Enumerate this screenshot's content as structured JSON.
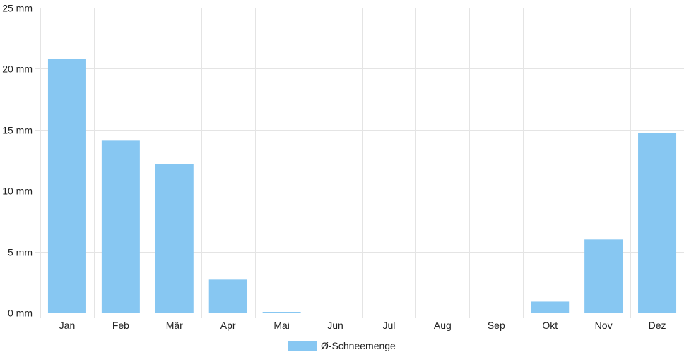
{
  "chart_data": {
    "type": "bar",
    "categories": [
      "Jan",
      "Feb",
      "Mär",
      "Apr",
      "Mai",
      "Jun",
      "Jul",
      "Aug",
      "Sep",
      "Okt",
      "Nov",
      "Dez"
    ],
    "series": [
      {
        "name": "Ø-Schneemenge",
        "values": [
          20.8,
          14.1,
          12.2,
          2.7,
          0.05,
          0,
          0,
          0,
          0,
          0.9,
          6.0,
          14.7
        ],
        "color": "#87c7f2"
      }
    ],
    "ylim": [
      0,
      25
    ],
    "yticks": [
      0,
      5,
      10,
      15,
      20,
      25
    ],
    "ytick_labels": [
      "0 mm",
      "5 mm",
      "10 mm",
      "15 mm",
      "20 mm",
      "25 mm"
    ],
    "grid": true,
    "legend_position": "bottom-center"
  }
}
